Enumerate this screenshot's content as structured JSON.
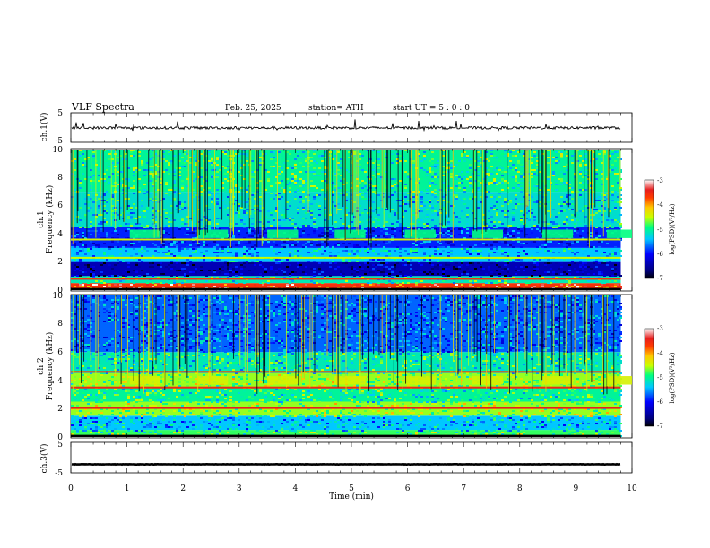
{
  "header": {
    "title": "VLF  Spectra",
    "date": "Feb. 25, 2025",
    "station": "station= ATH",
    "start": "start  UT  =    5  : 0   : 0"
  },
  "chart_data": [
    {
      "type": "line",
      "panel": "ch1-waveform",
      "ylabel": "ch.1(V)",
      "ylim": [
        -5,
        5
      ],
      "yticks": [
        "5",
        "-5"
      ],
      "xlim": [
        0,
        10
      ],
      "trace": {
        "level": -0.1,
        "range": [
          -0.8,
          0.7
        ],
        "end_x": 9.8
      }
    },
    {
      "type": "heatmap",
      "panel": "ch1-spectrogram",
      "ylabel": "ch.1\nFrequency  (kHz)",
      "ylim": [
        0,
        10
      ],
      "yticks": [
        "0",
        "2",
        "4",
        "6",
        "8",
        "10"
      ],
      "xlim": [
        0,
        10
      ],
      "x_end": 9.8,
      "colorbar": {
        "label": "log(PSD)(V²/Hz)",
        "ticks": [
          "-3",
          "-4",
          "-5",
          "-6",
          "-7"
        ],
        "range": [
          -7,
          -3
        ]
      },
      "bands": [
        {
          "f": [
            0,
            0.5
          ],
          "v": -3.6
        },
        {
          "f": [
            0.5,
            1.0
          ],
          "v": -5.1
        },
        {
          "f": [
            1.0,
            2.0
          ],
          "v": -6.4
        },
        {
          "f": [
            2.0,
            3.0
          ],
          "v": -5.4
        },
        {
          "f": [
            3.0,
            4.5
          ],
          "v": -5.9
        },
        {
          "f": [
            4.5,
            7.0
          ],
          "v": -5.2
        },
        {
          "f": [
            7.0,
            10.0
          ],
          "v": -5.0
        }
      ],
      "bursts": {
        "f": [
          3.7,
          4.3
        ],
        "v": -4.9,
        "times": [
          1.05,
          2.25,
          3.5,
          4.7,
          5.95,
          7.15,
          8.4,
          9.55
        ]
      },
      "lines": [
        {
          "f": 0.8,
          "v": -3.6
        },
        {
          "f": 2.3,
          "v": -4.5
        },
        {
          "f": 3.6,
          "v": -4.4
        }
      ]
    },
    {
      "type": "heatmap",
      "panel": "ch2-spectrogram",
      "ylabel": "ch.2\nFrequency  (kHz)",
      "ylim": [
        0,
        10
      ],
      "yticks": [
        "0",
        "2",
        "4",
        "6",
        "8",
        "10"
      ],
      "xlim": [
        0,
        10
      ],
      "x_end": 9.8,
      "colorbar": {
        "label": "log(PSD)(V²/Hz)",
        "ticks": [
          "-3",
          "-4",
          "-5",
          "-6",
          "-7"
        ],
        "range": [
          -7,
          -3
        ]
      },
      "bands": [
        {
          "f": [
            0,
            0.5
          ],
          "v": -4.8
        },
        {
          "f": [
            0.5,
            1.5
          ],
          "v": -5.4
        },
        {
          "f": [
            1.5,
            2.5
          ],
          "v": -4.6
        },
        {
          "f": [
            2.5,
            3.5
          ],
          "v": -5.0
        },
        {
          "f": [
            3.5,
            4.5
          ],
          "v": -4.6
        },
        {
          "f": [
            4.5,
            6.0
          ],
          "v": -5.1
        },
        {
          "f": [
            6.0,
            10.0
          ],
          "v": -5.7
        }
      ],
      "bursts": {
        "f": [
          3.7,
          4.3
        ],
        "v": -4.4,
        "times": [
          1.05,
          2.25,
          3.5,
          4.7,
          5.95,
          7.15,
          8.4,
          9.55
        ]
      },
      "lines": [
        {
          "f": 2.05,
          "v": -3.4
        },
        {
          "f": 3.5,
          "v": -3.5
        },
        {
          "f": 4.6,
          "v": -3.7
        }
      ]
    },
    {
      "type": "line",
      "panel": "ch3-waveform",
      "ylabel": "ch.3(V)",
      "ylim": [
        -5,
        5
      ],
      "yticks": [
        "5",
        "0",
        "-5"
      ],
      "xlim": [
        0,
        10
      ],
      "xlabel": "Time  (min)",
      "xticks": [
        "0",
        "1",
        "2",
        "3",
        "4",
        "5",
        "6",
        "7",
        "8",
        "9",
        "10"
      ],
      "trace": {
        "level": -2.2,
        "range": [
          -2.4,
          -2.0
        ],
        "end_x": 9.8
      }
    }
  ]
}
